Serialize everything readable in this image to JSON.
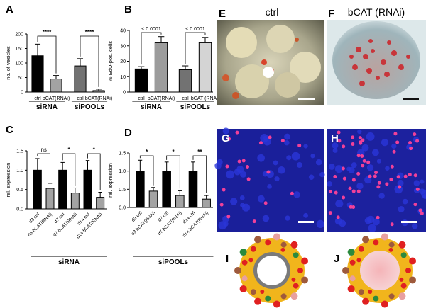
{
  "panel_letters": {
    "A": "A",
    "B": "B",
    "C": "C",
    "D": "D",
    "E": "E",
    "F": "F",
    "G": "G",
    "H": "H",
    "I": "I",
    "J": "J"
  },
  "image_labels": {
    "ctrl": "ctrl",
    "bcat": "bCAT (RNAi)"
  },
  "chart_data": [
    {
      "id": "A",
      "type": "bar",
      "ylabel": "no. of vesicles",
      "ylim": [
        0,
        200
      ],
      "yticks": [
        0,
        50,
        100,
        150,
        200
      ],
      "categories": [
        "ctrl",
        "bCAT(RNAi)",
        "ctrl",
        "bCAT(RNAi)"
      ],
      "values": [
        125,
        45,
        90,
        5
      ],
      "errors": [
        40,
        12,
        25,
        5
      ],
      "colors": [
        "#000000",
        "#a3a3a3",
        "#727272",
        "#a3a3a3"
      ],
      "groups": [
        {
          "label": "siRNA",
          "range": [
            0,
            1
          ]
        },
        {
          "label": "siPOOLs",
          "range": [
            2,
            3
          ]
        }
      ],
      "significance": [
        {
          "pair": [
            0,
            1
          ],
          "label": "****"
        },
        {
          "pair": [
            2,
            3
          ],
          "label": "****"
        }
      ]
    },
    {
      "id": "B",
      "type": "bar",
      "ylabel": "% EdU-pos. cells",
      "ylim": [
        0,
        40
      ],
      "yticks": [
        0,
        10,
        20,
        30,
        40
      ],
      "categories": [
        "ctrl",
        "bCAT(RNAi)",
        "ctrl",
        "bCAT (RNAi)"
      ],
      "values": [
        15,
        32,
        14.5,
        32
      ],
      "errors": [
        1.5,
        4,
        2.5,
        3.5
      ],
      "colors": [
        "#000000",
        "#9c9c9c",
        "#727272",
        "#d4d4d4"
      ],
      "groups": [
        {
          "label": "siRNA",
          "range": [
            0,
            1
          ]
        },
        {
          "label": "siPOOLs",
          "range": [
            2,
            3
          ]
        }
      ],
      "significance": [
        {
          "pair": [
            0,
            1
          ],
          "label": "< 0.0001"
        },
        {
          "pair": [
            2,
            3
          ],
          "label": "< 0.0001"
        }
      ]
    },
    {
      "id": "C",
      "type": "bar",
      "ylabel": "rel. expression",
      "ylim": [
        0,
        1.5
      ],
      "yticks": [
        0.0,
        0.5,
        1.0,
        1.5
      ],
      "categories": [
        "d3 ctrl",
        "d3 bCAT(RNAi)",
        "d7 ctrl",
        "d7 bCAT(RNAi)",
        "d14 ctrl",
        "d14 bCAT(RNAi)"
      ],
      "values": [
        1.0,
        0.53,
        1.0,
        0.41,
        1.0,
        0.3
      ],
      "errors": [
        0.3,
        0.13,
        0.2,
        0.13,
        0.25,
        0.13
      ],
      "colors": [
        "#000000",
        "#a3a3a3",
        "#000000",
        "#a3a3a3",
        "#000000",
        "#a3a3a3"
      ],
      "groups": [
        {
          "label": "siRNA",
          "range": [
            0,
            5
          ]
        }
      ],
      "significance": [
        {
          "pair": [
            0,
            1
          ],
          "label": "ns"
        },
        {
          "pair": [
            2,
            3
          ],
          "label": "*"
        },
        {
          "pair": [
            4,
            5
          ],
          "label": "*"
        }
      ]
    },
    {
      "id": "D",
      "type": "bar",
      "ylabel": "rel. expression",
      "ylim": [
        0,
        1.5
      ],
      "yticks": [
        0.0,
        0.5,
        1.0,
        1.5
      ],
      "categories": [
        "d3 ctrl",
        "d3 bCAT(RNAi)",
        "d7 ctrl",
        "d7 bCAT(RNAi)",
        "d14 ctrl",
        "d14 bCAT(RNAi)"
      ],
      "values": [
        1.0,
        0.45,
        1.0,
        0.33,
        1.0,
        0.23
      ],
      "errors": [
        0.3,
        0.1,
        0.25,
        0.13,
        0.25,
        0.1
      ],
      "colors": [
        "#000000",
        "#a3a3a3",
        "#000000",
        "#a3a3a3",
        "#000000",
        "#a3a3a3"
      ],
      "groups": [
        {
          "label": "siPOOLs",
          "range": [
            0,
            5
          ]
        }
      ],
      "significance": [
        {
          "pair": [
            0,
            1
          ],
          "label": "*"
        },
        {
          "pair": [
            2,
            3
          ],
          "label": "*"
        },
        {
          "pair": [
            4,
            5
          ],
          "label": "**"
        }
      ]
    }
  ]
}
